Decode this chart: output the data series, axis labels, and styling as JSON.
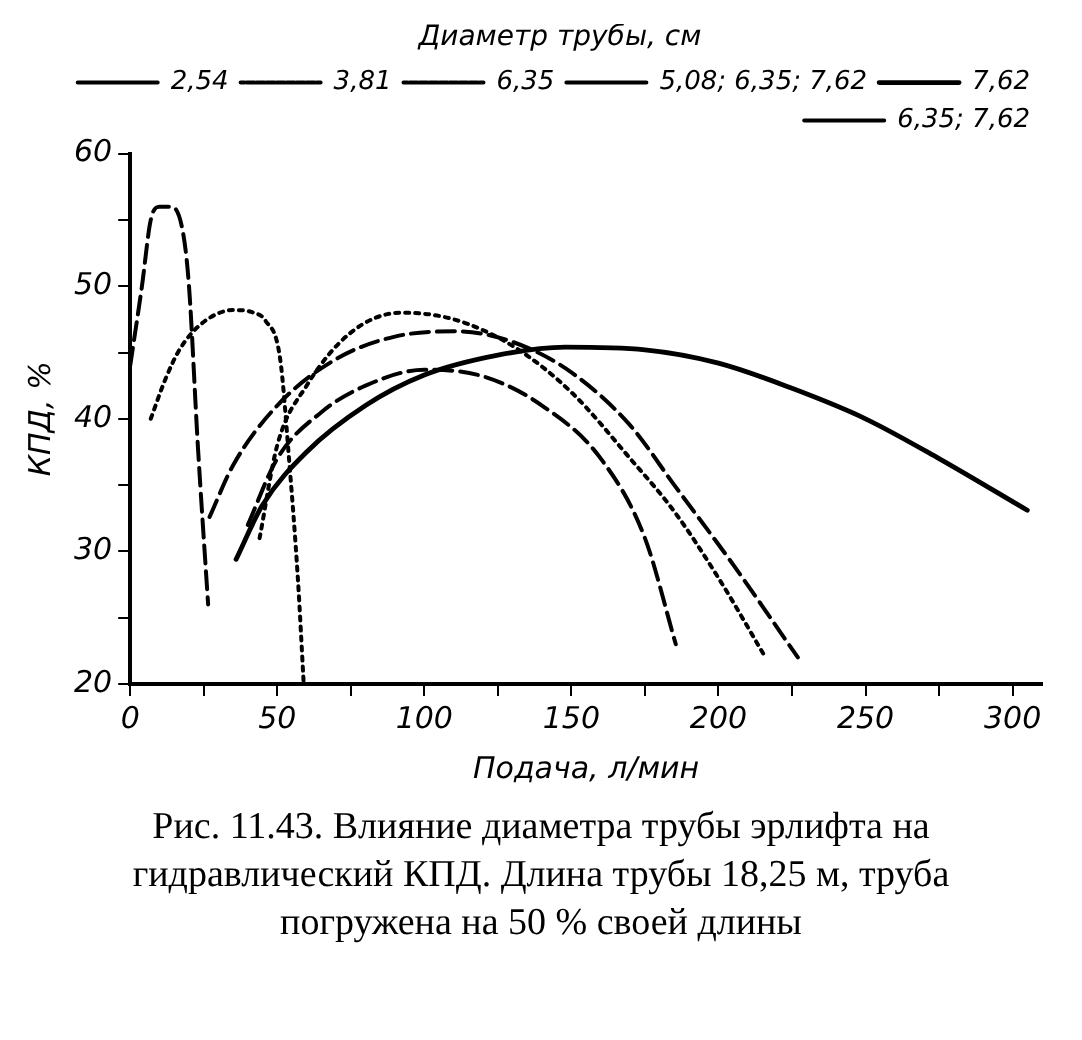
{
  "chart_data": {
    "type": "line",
    "xlabel": "Подача, л/мин",
    "ylabel": "КПД, %",
    "legend_title": "Диаметр трубы, см",
    "legend": "top right",
    "grid": false,
    "marker": "none",
    "xlim": [
      0,
      310
    ],
    "ylim": [
      20,
      60
    ],
    "xticks": [
      0,
      {
        "value": 25,
        "label": null
      },
      50,
      {
        "value": 75,
        "label": null
      },
      100,
      {
        "value": 125,
        "label": null
      },
      150,
      {
        "value": 175,
        "label": null
      },
      200,
      {
        "value": 225,
        "label": null
      },
      250,
      {
        "value": 275,
        "label": null
      },
      300
    ],
    "yticks": [
      20,
      {
        "value": 25,
        "label": null
      },
      30,
      {
        "value": 35,
        "label": null
      },
      40,
      {
        "value": 45,
        "label": null
      },
      50,
      {
        "value": 55,
        "label": null
      },
      60
    ],
    "series": [
      {
        "name": "2,54",
        "color": "#000000",
        "line_style": "dashed",
        "x": [
          0,
          4,
          7,
          10,
          14,
          18,
          20,
          23,
          26.5
        ],
        "values": [
          44,
          50,
          55,
          56,
          56,
          54,
          50,
          38,
          26
        ]
      },
      {
        "name": "3,81",
        "color": "#000000",
        "line_style": "dotted",
        "x": [
          7,
          12,
          17,
          25,
          35,
          42,
          46,
          51,
          54,
          57,
          59
        ],
        "values": [
          40,
          43,
          45.3,
          47.3,
          48.2,
          48,
          47.4,
          44.5,
          37,
          28,
          20
        ]
      },
      {
        "name": "6,35",
        "color": "#000000",
        "line_style": "dotted",
        "x": [
          44,
          50,
          60,
          75,
          92,
          110,
          130,
          150,
          170,
          185,
          200,
          216
        ],
        "values": [
          31,
          38,
          42.5,
          46.5,
          48,
          47.5,
          45.5,
          42,
          37,
          33,
          28,
          22
        ]
      },
      {
        "name": "5,08; 6,35; 7,62",
        "color": "#000000",
        "line_style": "dashed",
        "x": [
          27,
          35,
          50,
          70,
          90,
          111,
          130,
          150,
          170,
          185,
          205,
          227
        ],
        "values": [
          32.6,
          36.5,
          41,
          44.5,
          46.2,
          46.6,
          45.8,
          43.5,
          39.5,
          35,
          29,
          22
        ]
      },
      {
        "name": "7,62",
        "color": "#000000",
        "line_style": "solid",
        "x": [
          36,
          45,
          60,
          80,
          100,
          125,
          148,
          175,
          200,
          225,
          250,
          275,
          305
        ],
        "values": [
          29.4,
          33.5,
          37.5,
          41,
          43.3,
          44.8,
          45.4,
          45.2,
          44.2,
          42.3,
          40,
          37,
          33.1
        ]
      },
      {
        "name": "6,35; 7,62",
        "color": "#000000",
        "line_style": "dashed",
        "x": [
          40,
          50,
          65,
          80,
          100,
          120,
          140,
          160,
          175,
          185.5
        ],
        "values": [
          32,
          37,
          40.5,
          42.5,
          43.7,
          43.2,
          41,
          37,
          31,
          23
        ]
      }
    ],
    "annotations": [
      "Рис. 11.43. Влияние диаметра трубы эрлифта на гидравлический КПД. Длина трубы 18,25 м, труба погружена на 50 % своей длины"
    ]
  }
}
